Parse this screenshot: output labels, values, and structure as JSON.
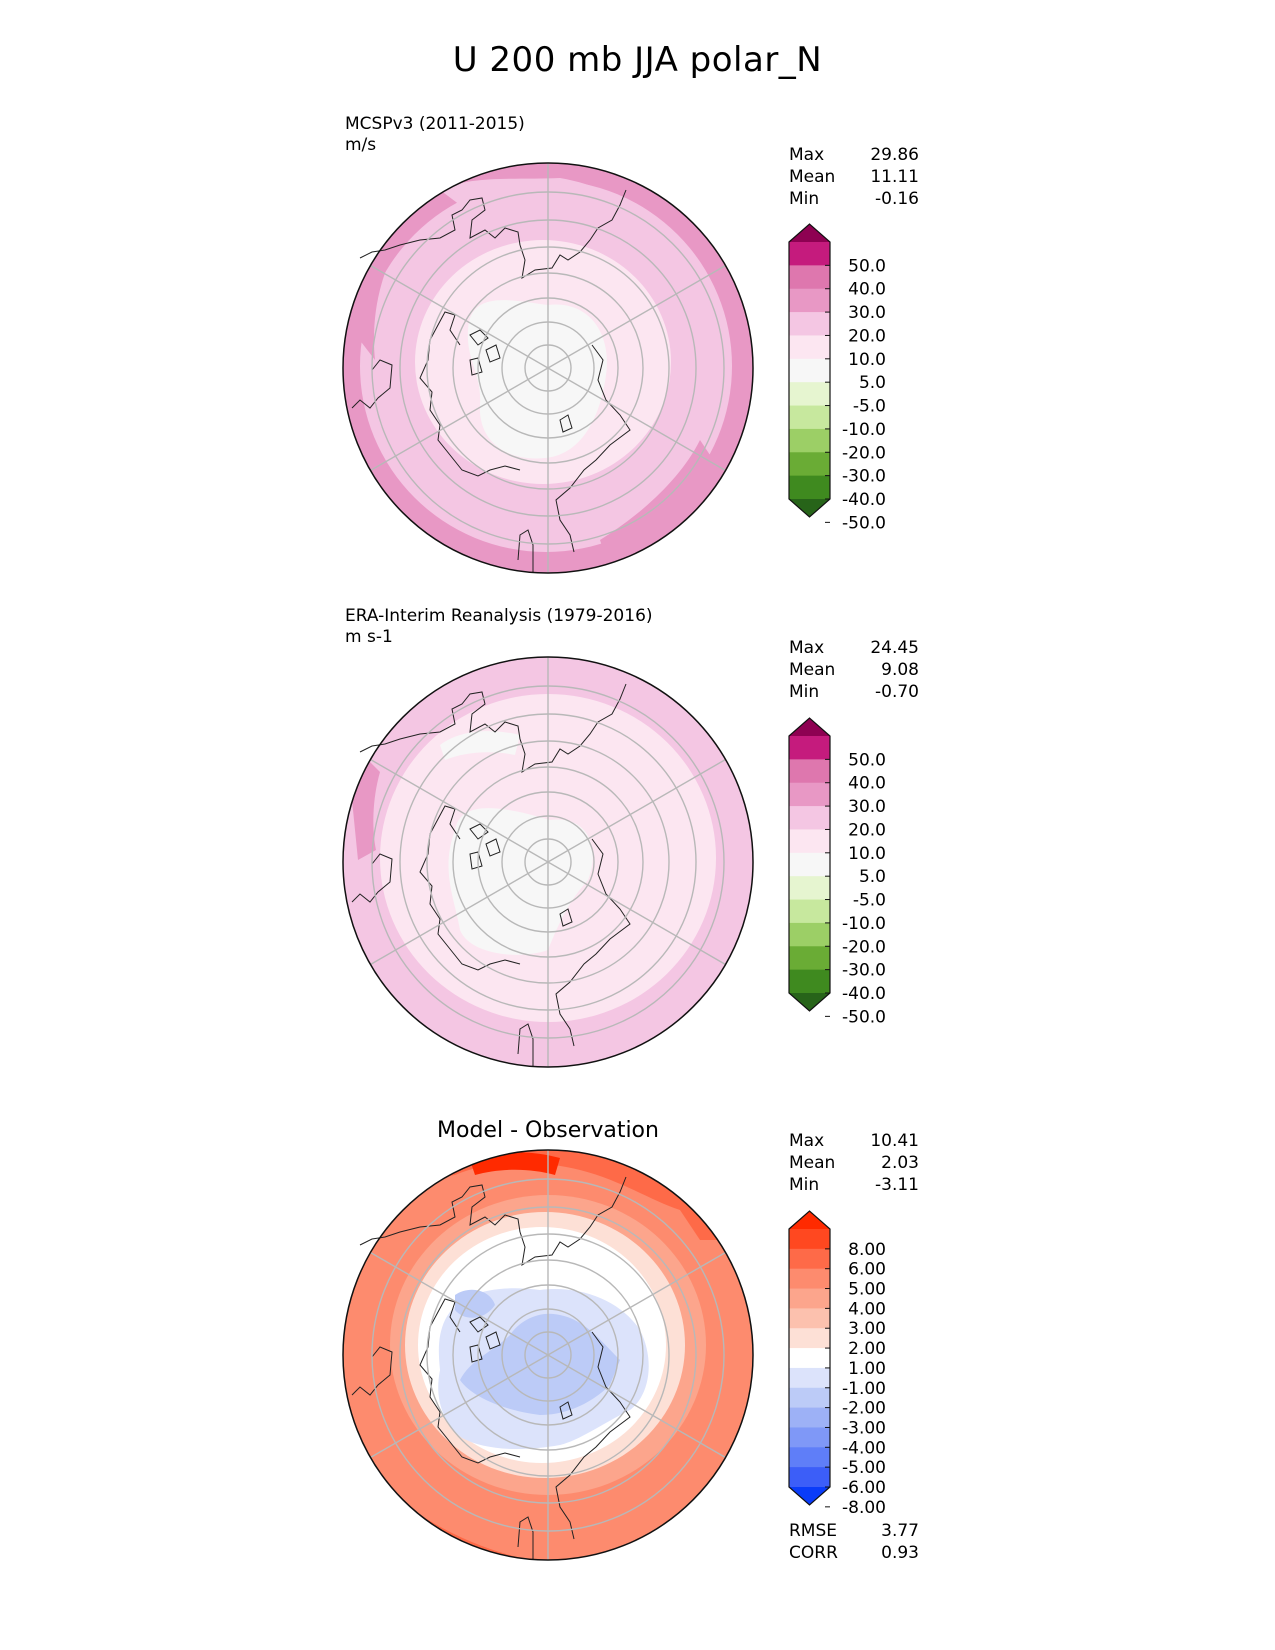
{
  "title": "U 200 mb JJA polar_N",
  "panels": [
    {
      "id": "test",
      "name": "MCSPv3 (2011-2015)",
      "units": "m/s",
      "stats": [
        {
          "label": "Max",
          "value": "29.86"
        },
        {
          "label": "Mean",
          "value": "11.11"
        },
        {
          "label": "Min",
          "value": "-0.16"
        }
      ],
      "colorbar": {
        "ticks": [
          "50.0",
          "40.0",
          "30.0",
          "20.0",
          "10.0",
          "5.0",
          "-5.0",
          "-10.0",
          "-20.0",
          "-30.0",
          "-40.0",
          "-50.0"
        ],
        "colors": [
          "#8e0152",
          "#c51b7d",
          "#de77ae",
          "#e898c5",
          "#f4c6e3",
          "#fce6f1",
          "#f7f7f7",
          "#e6f5d0",
          "#c7e89e",
          "#9ccf66",
          "#6aac35",
          "#3f8a1f",
          "#276419"
        ]
      }
    },
    {
      "id": "reference",
      "name": "ERA-Interim Reanalysis (1979-2016)",
      "units": "m s-1",
      "stats": [
        {
          "label": "Max",
          "value": "24.45"
        },
        {
          "label": "Mean",
          "value": "9.08"
        },
        {
          "label": "Min",
          "value": "-0.70"
        }
      ],
      "colorbar": {
        "ticks": [
          "50.0",
          "40.0",
          "30.0",
          "20.0",
          "10.0",
          "5.0",
          "-5.0",
          "-10.0",
          "-20.0",
          "-30.0",
          "-40.0",
          "-50.0"
        ],
        "colors": [
          "#8e0152",
          "#c51b7d",
          "#de77ae",
          "#e898c5",
          "#f4c6e3",
          "#fce6f1",
          "#f7f7f7",
          "#e6f5d0",
          "#c7e89e",
          "#9ccf66",
          "#6aac35",
          "#3f8a1f",
          "#276419"
        ]
      }
    },
    {
      "id": "diff",
      "name": "Model - Observation",
      "units": "",
      "stats": [
        {
          "label": "Max",
          "value": "10.41"
        },
        {
          "label": "Mean",
          "value": "2.03"
        },
        {
          "label": "Min",
          "value": "-3.11"
        }
      ],
      "extra_stats": [
        {
          "label": "RMSE",
          "value": "3.77"
        },
        {
          "label": "CORR",
          "value": "0.93"
        }
      ],
      "colorbar": {
        "ticks": [
          "8.00",
          "6.00",
          "5.00",
          "4.00",
          "3.00",
          "2.00",
          "1.00",
          "-1.00",
          "-2.00",
          "-3.00",
          "-4.00",
          "-5.00",
          "-6.00",
          "-8.00"
        ],
        "colors": [
          "#ff2a00",
          "#ff4820",
          "#fe6a48",
          "#fd8b6e",
          "#fca58c",
          "#fcc1ae",
          "#fde0d6",
          "#ffffff",
          "#dce3fb",
          "#bccbf7",
          "#9db1f6",
          "#7f98f7",
          "#5f7ef8",
          "#3c5ef8",
          "#0a3cf9"
        ]
      }
    }
  ],
  "chart_data": [
    {
      "type": "heatmap",
      "projection": "north-polar-stereographic",
      "title": "MCSPv3 (2011-2015)",
      "units": "m/s",
      "levels": [
        -50,
        -40,
        -30,
        -20,
        -10,
        -5,
        5,
        10,
        20,
        30,
        40,
        50
      ],
      "max": 29.86,
      "mean": 11.11,
      "min": -0.16
    },
    {
      "type": "heatmap",
      "projection": "north-polar-stereographic",
      "title": "ERA-Interim Reanalysis (1979-2016)",
      "units": "m s-1",
      "levels": [
        -50,
        -40,
        -30,
        -20,
        -10,
        -5,
        5,
        10,
        20,
        30,
        40,
        50
      ],
      "max": 24.45,
      "mean": 9.08,
      "min": -0.7
    },
    {
      "type": "heatmap",
      "projection": "north-polar-stereographic",
      "title": "Model - Observation",
      "levels": [
        -8,
        -6,
        -5,
        -4,
        -3,
        -2,
        -1,
        1,
        2,
        3,
        4,
        5,
        6,
        8
      ],
      "max": 10.41,
      "mean": 2.03,
      "min": -3.11,
      "rmse": 3.77,
      "corr": 0.93
    }
  ]
}
